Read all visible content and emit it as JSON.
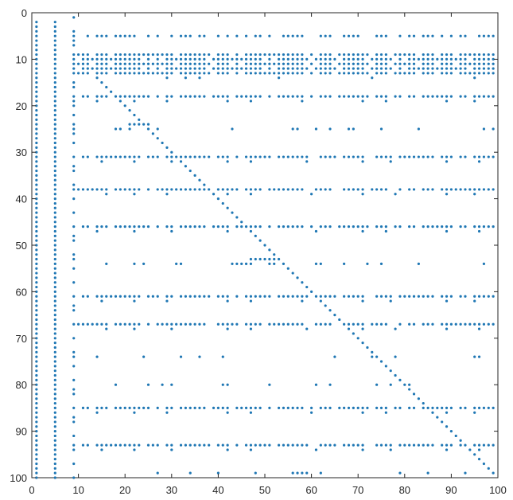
{
  "chart_data": {
    "type": "scatter",
    "title": "",
    "xlabel": "",
    "ylabel": "",
    "xlim": [
      0,
      100
    ],
    "ylim": [
      0,
      100
    ],
    "y_reversed": true,
    "xticks": [
      "0",
      "10",
      "20",
      "30",
      "40",
      "50",
      "60",
      "70",
      "80",
      "90",
      "100"
    ],
    "yticks": [
      "0",
      "10",
      "20",
      "30",
      "40",
      "50",
      "60",
      "70",
      "80",
      "90",
      "100"
    ],
    "marker_color": "#1f77b4",
    "axis_color": "#262626",
    "grid": false,
    "legend": "none",
    "structure": {
      "full_columns": [
        1,
        5
      ],
      "partial_columns": [
        {
          "x": 9,
          "y_start": 1,
          "y_end": 100,
          "every": 3
        }
      ],
      "diagonal": {
        "from": 15,
        "to": 99
      },
      "dense_rows": [
        5,
        9,
        10,
        11,
        12,
        13
      ],
      "dense_row_x_range": [
        10,
        99
      ],
      "banded_rows": [
        18,
        31,
        38,
        46,
        61,
        67,
        85,
        93
      ],
      "sparse_rows": {
        "25": [
          18,
          19,
          21,
          27,
          43,
          56,
          57,
          61,
          64,
          68,
          69,
          75,
          83,
          97,
          99
        ],
        "54": [
          16,
          22,
          24,
          31,
          32,
          43,
          44,
          45,
          46,
          47,
          51,
          52,
          61,
          62,
          67,
          72,
          75,
          83,
          97
        ],
        "74": [
          14,
          24,
          32,
          36,
          41,
          65,
          73,
          78,
          95,
          96
        ],
        "80": [
          18,
          25,
          28,
          30,
          41,
          42,
          51,
          61,
          64,
          74,
          77,
          81
        ],
        "99": [
          27,
          34,
          40,
          48,
          56,
          57,
          58,
          59,
          62,
          79,
          85,
          93
        ]
      }
    }
  }
}
